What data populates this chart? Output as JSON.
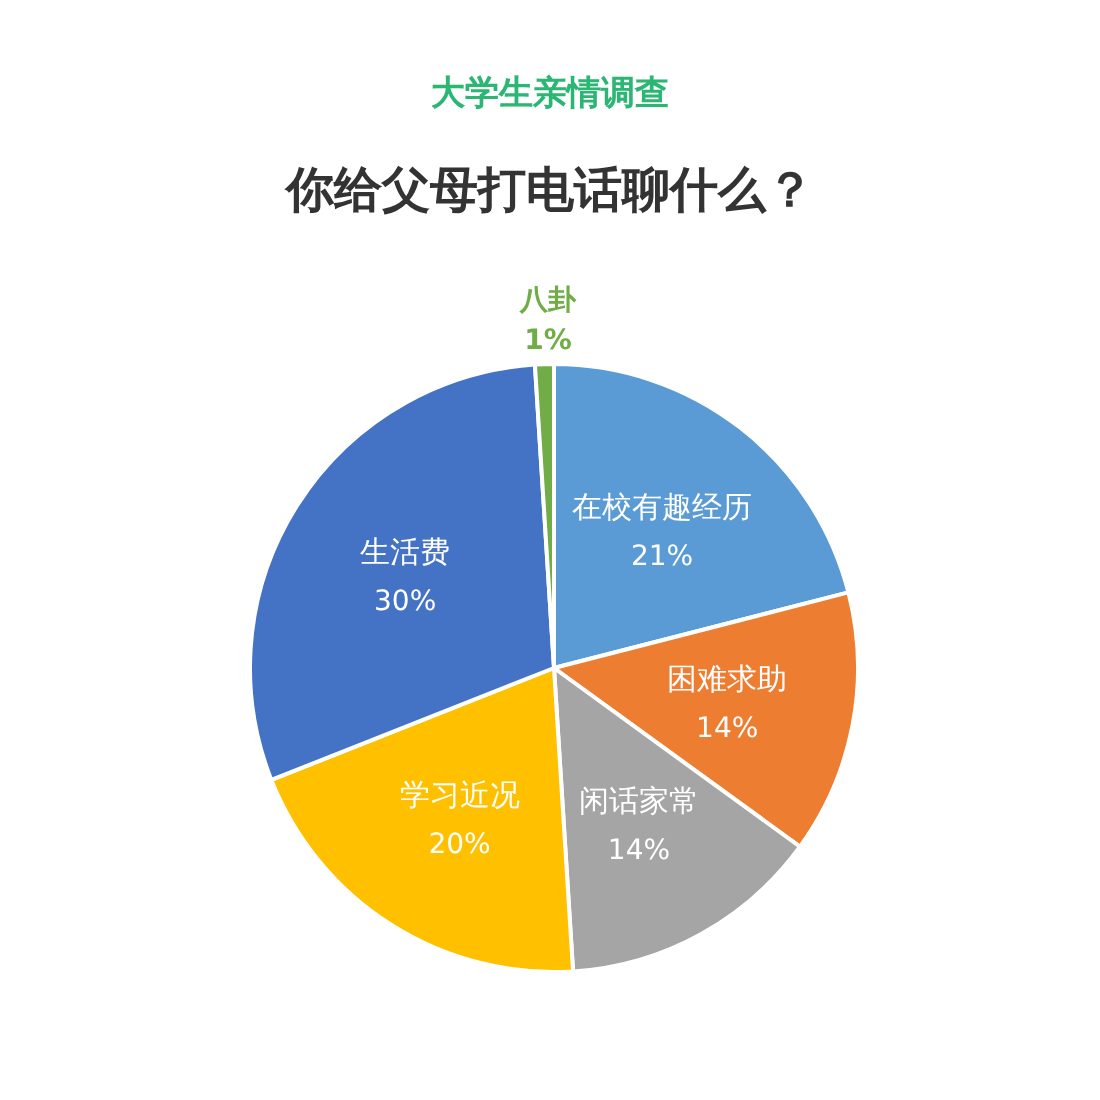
{
  "chart_data": {
    "type": "pie",
    "subtitle": "大学生亲情调查",
    "title": "你给父母打电话聊什么？",
    "categories": [
      "在校有趣经历",
      "困难求助",
      "闲话家常",
      "学习近况",
      "生活费",
      "八卦"
    ],
    "values": [
      21,
      14,
      14,
      20,
      30,
      1
    ],
    "value_labels": [
      "21%",
      "14%",
      "14%",
      "20%",
      "30%",
      "1%"
    ],
    "colors": [
      "#5b9bd5",
      "#ed7d31",
      "#a5a5a5",
      "#ffc000",
      "#4472c4",
      "#70ad47"
    ]
  }
}
